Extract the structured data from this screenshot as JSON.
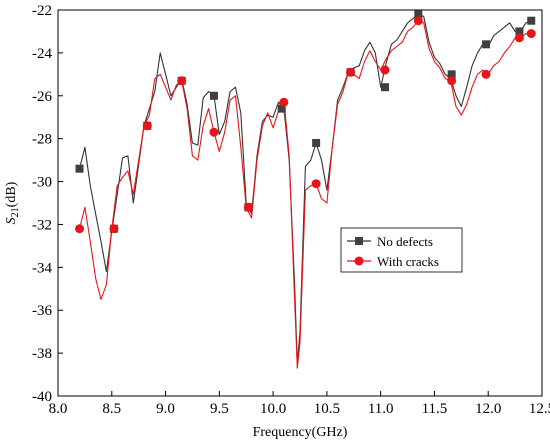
{
  "chart_data": {
    "type": "line",
    "xlabel": "Frequency(GHz)",
    "ylabel_main": "S",
    "ylabel_sub": "21",
    "ylabel_unit": "(dB)",
    "xlim": [
      8.0,
      12.5
    ],
    "ylim": [
      -40,
      -22
    ],
    "xticks": [
      "8.0",
      "8.5",
      "9.0",
      "9.5",
      "10.0",
      "10.5",
      "11.0",
      "11.5",
      "12.0",
      "12.5"
    ],
    "yticks": [
      "-40",
      "-38",
      "-36",
      "-34",
      "-32",
      "-30",
      "-28",
      "-26",
      "-24",
      "-22"
    ],
    "grid": false,
    "legend_position": "center-right",
    "series": [
      {
        "name": "No defects",
        "color": "#333333",
        "marker": "square",
        "x": [
          8.2,
          8.25,
          8.3,
          8.35,
          8.4,
          8.45,
          8.5,
          8.55,
          8.6,
          8.65,
          8.7,
          8.75,
          8.8,
          8.85,
          8.9,
          8.95,
          9.0,
          9.05,
          9.1,
          9.15,
          9.2,
          9.25,
          9.3,
          9.35,
          9.4,
          9.45,
          9.5,
          9.55,
          9.6,
          9.65,
          9.7,
          9.75,
          9.8,
          9.85,
          9.9,
          9.95,
          10.0,
          10.05,
          10.1,
          10.15,
          10.2,
          10.225,
          10.25,
          10.3,
          10.35,
          10.4,
          10.45,
          10.5,
          10.55,
          10.6,
          10.65,
          10.7,
          10.75,
          10.8,
          10.85,
          10.9,
          10.95,
          11.0,
          11.05,
          11.1,
          11.15,
          11.2,
          11.25,
          11.3,
          11.35,
          11.4,
          11.45,
          11.5,
          11.55,
          11.6,
          11.65,
          11.7,
          11.75,
          11.8,
          11.85,
          11.9,
          11.95,
          12.0,
          12.05,
          12.1,
          12.15,
          12.2,
          12.25,
          12.3,
          12.35,
          12.4
        ],
        "values": [
          -29.4,
          -28.4,
          -30.2,
          -31.5,
          -32.8,
          -34.2,
          -32.3,
          -30.6,
          -28.9,
          -28.8,
          -31.0,
          -29.2,
          -27.4,
          -26.6,
          -25.8,
          -24.0,
          -25.0,
          -26.0,
          -25.6,
          -25.2,
          -26.4,
          -28.2,
          -28.3,
          -26.1,
          -25.8,
          -26.0,
          -27.8,
          -27.2,
          -25.8,
          -25.6,
          -26.8,
          -31.0,
          -31.5,
          -28.8,
          -27.2,
          -26.9,
          -27.0,
          -26.3,
          -26.6,
          -29.0,
          -34.8,
          -38.5,
          -37.0,
          -29.3,
          -29.0,
          -28.2,
          -29.0,
          -30.4,
          -28.4,
          -26.2,
          -25.6,
          -24.9,
          -24.7,
          -24.6,
          -23.9,
          -23.5,
          -24.0,
          -25.6,
          -24.5,
          -23.6,
          -23.4,
          -23.0,
          -22.6,
          -22.4,
          -22.2,
          -22.3,
          -23.5,
          -24.2,
          -24.5,
          -25.0,
          -25.2,
          -26.0,
          -26.5,
          -25.6,
          -24.6,
          -24.0,
          -23.6,
          -23.7,
          -23.2,
          -23.0,
          -22.8,
          -22.6,
          -23.0,
          -23.0,
          -22.6,
          -22.5
        ]
      },
      {
        "name": "With cracks",
        "color": "#e8141c",
        "marker": "circle",
        "x": [
          8.2,
          8.25,
          8.3,
          8.35,
          8.4,
          8.45,
          8.5,
          8.55,
          8.6,
          8.65,
          8.7,
          8.75,
          8.8,
          8.85,
          8.9,
          8.95,
          9.0,
          9.05,
          9.1,
          9.15,
          9.2,
          9.25,
          9.3,
          9.35,
          9.4,
          9.45,
          9.5,
          9.55,
          9.6,
          9.65,
          9.7,
          9.75,
          9.8,
          9.85,
          9.9,
          9.95,
          10.0,
          10.05,
          10.1,
          10.15,
          10.2,
          10.225,
          10.25,
          10.3,
          10.35,
          10.4,
          10.45,
          10.5,
          10.55,
          10.6,
          10.65,
          10.7,
          10.75,
          10.8,
          10.85,
          10.9,
          10.95,
          11.0,
          11.05,
          11.1,
          11.15,
          11.2,
          11.25,
          11.3,
          11.35,
          11.4,
          11.45,
          11.5,
          11.55,
          11.6,
          11.65,
          11.7,
          11.75,
          11.8,
          11.85,
          11.9,
          11.95,
          12.0,
          12.05,
          12.1,
          12.15,
          12.2,
          12.25,
          12.3,
          12.35,
          12.4
        ],
        "values": [
          -32.2,
          -31.2,
          -32.8,
          -34.5,
          -35.5,
          -34.8,
          -32.2,
          -30.2,
          -29.8,
          -29.5,
          -30.6,
          -29.0,
          -27.4,
          -26.9,
          -25.2,
          -25.0,
          -25.6,
          -26.2,
          -25.5,
          -25.3,
          -26.6,
          -28.8,
          -29.0,
          -27.4,
          -26.6,
          -27.7,
          -28.6,
          -27.7,
          -26.2,
          -26.0,
          -28.4,
          -31.2,
          -31.7,
          -29.0,
          -27.4,
          -26.8,
          -27.5,
          -26.7,
          -26.2,
          -28.8,
          -35.5,
          -38.7,
          -37.5,
          -30.4,
          -30.2,
          -30.1,
          -30.8,
          -31.0,
          -28.4,
          -26.4,
          -25.8,
          -24.9,
          -25.0,
          -25.2,
          -24.4,
          -23.9,
          -24.4,
          -24.8,
          -24.3,
          -23.9,
          -23.7,
          -23.5,
          -23.0,
          -22.8,
          -22.5,
          -22.6,
          -23.8,
          -24.4,
          -24.7,
          -25.2,
          -25.3,
          -26.5,
          -26.9,
          -26.4,
          -25.6,
          -25.0,
          -24.8,
          -25.0,
          -24.6,
          -24.4,
          -24.0,
          -23.7,
          -23.3,
          -23.3,
          -23.1,
          -23.1
        ]
      }
    ],
    "markers": {
      "No defects": [
        [
          8.2,
          -29.4
        ],
        [
          8.52,
          -32.2
        ],
        [
          8.83,
          -27.4
        ],
        [
          9.15,
          -25.3
        ],
        [
          9.45,
          -26.0
        ],
        [
          9.77,
          -31.2
        ],
        [
          10.08,
          -26.6
        ],
        [
          10.4,
          -28.2
        ],
        [
          10.72,
          -24.9
        ],
        [
          11.04,
          -25.6
        ],
        [
          11.35,
          -22.2
        ],
        [
          11.66,
          -25.0
        ],
        [
          11.98,
          -23.6
        ],
        [
          12.29,
          -23.0
        ],
        [
          12.4,
          -22.5
        ]
      ],
      "With cracks": [
        [
          8.2,
          -32.2
        ],
        [
          8.52,
          -32.2
        ],
        [
          8.83,
          -27.4
        ],
        [
          9.15,
          -25.3
        ],
        [
          9.45,
          -27.7
        ],
        [
          9.77,
          -31.2
        ],
        [
          10.1,
          -26.3
        ],
        [
          10.4,
          -30.1
        ],
        [
          10.72,
          -24.9
        ],
        [
          11.04,
          -24.8
        ],
        [
          11.35,
          -22.5
        ],
        [
          11.66,
          -25.3
        ],
        [
          11.98,
          -25.0
        ],
        [
          12.29,
          -23.3
        ],
        [
          12.4,
          -23.1
        ]
      ]
    }
  }
}
